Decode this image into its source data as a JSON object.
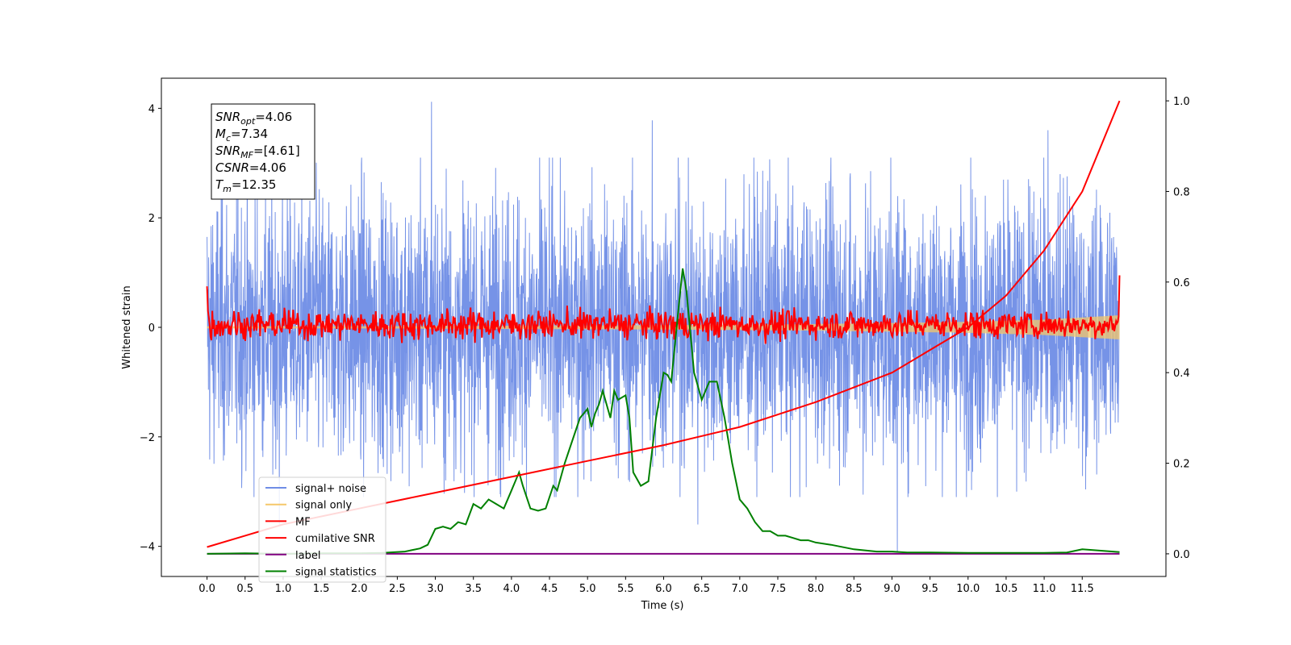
{
  "chart_data": {
    "type": "line",
    "xlabel": "Time (s)",
    "ylabel": "Whitened strain",
    "xlim": [
      -0.6,
      12.6
    ],
    "ylim_left": [
      -4.55,
      4.55
    ],
    "ylim_right": [
      -0.05,
      1.05
    ],
    "x_ticks": [
      "0.0",
      "0.5",
      "1.0",
      "1.5",
      "2.0",
      "2.5",
      "3.0",
      "3.5",
      "4.0",
      "4.5",
      "5.0",
      "5.5",
      "6.0",
      "6.5",
      "7.0",
      "7.5",
      "8.0",
      "8.5",
      "9.0",
      "9.5",
      "10.0",
      "10.5",
      "11.0",
      "11.5"
    ],
    "y_ticks_left": [
      "4",
      "2",
      "0",
      "−2",
      "−4"
    ],
    "y_ticks_right": [
      "1.0",
      "0.8",
      "0.6",
      "0.4",
      "0.2",
      "0.0"
    ],
    "annotation": {
      "lines": [
        {
          "base": "SNR",
          "sub": "opt",
          "value": "=4.06"
        },
        {
          "base": "M",
          "sub": "c",
          "value": "=7.34"
        },
        {
          "base": "SNR",
          "sub": "MF",
          "value": "=[4.61]"
        },
        {
          "base": "CSNR",
          "sub": "",
          "value": "=4.06"
        },
        {
          "base": "T",
          "sub": "m",
          "value": "=12.35"
        }
      ]
    },
    "legend": {
      "position": "lower-left",
      "entries": [
        {
          "label": "signal+ noise",
          "color": "#6f8de6"
        },
        {
          "label": "signal only",
          "color": "#f5c76a"
        },
        {
          "label": "MF",
          "color": "#ff0000"
        },
        {
          "label": "cumilative SNR",
          "color": "#ff0000"
        },
        {
          "label": "label",
          "color": "#800080"
        },
        {
          "label": "signal statistics",
          "color": "#008000"
        }
      ]
    },
    "series": [
      {
        "name": "signal+ noise",
        "axis": "left",
        "color": "#6f8de6",
        "style": "dense noise band",
        "x_range": [
          0.0,
          11.99
        ],
        "typical_envelope": [
          -2.0,
          2.0
        ],
        "notable_peaks": [
          [
            2.95,
            4.12
          ],
          [
            5.85,
            3.78
          ],
          [
            11.05,
            3.6
          ],
          [
            9.07,
            -4.1
          ],
          [
            6.45,
            -3.6
          ],
          [
            0.95,
            -3.6
          ]
        ]
      },
      {
        "name": "signal only",
        "axis": "left",
        "color": "#f5c76a",
        "x": [
          0.0,
          2.0,
          4.0,
          6.0,
          8.0,
          10.0,
          11.0,
          11.5,
          11.99
        ],
        "amplitude": [
          0.02,
          0.02,
          0.03,
          0.04,
          0.06,
          0.1,
          0.14,
          0.18,
          0.22
        ]
      },
      {
        "name": "MF",
        "axis": "left",
        "color": "#ff0000",
        "style": "noisy line around zero",
        "x_range": [
          0.0,
          11.99
        ],
        "typical_envelope": [
          -0.3,
          0.6
        ],
        "start_value": 0.75,
        "end_value": 0.95
      },
      {
        "name": "cumilative SNR",
        "axis": "right",
        "color": "#ff0000",
        "x": [
          0.0,
          0.5,
          1.0,
          2.0,
          3.0,
          4.0,
          5.0,
          6.0,
          7.0,
          8.0,
          9.0,
          10.0,
          10.5,
          11.0,
          11.5,
          11.99
        ],
        "y": [
          0.015,
          0.04,
          0.065,
          0.1,
          0.135,
          0.17,
          0.205,
          0.24,
          0.28,
          0.335,
          0.4,
          0.5,
          0.57,
          0.67,
          0.8,
          1.0
        ]
      },
      {
        "name": "label",
        "axis": "right",
        "color": "#800080",
        "x": [
          0.0,
          11.99
        ],
        "y": [
          0.0,
          0.0
        ]
      },
      {
        "name": "signal statistics",
        "axis": "right",
        "color": "#008000",
        "x": [
          0.0,
          0.5,
          1.0,
          1.5,
          2.0,
          2.3,
          2.6,
          2.8,
          2.9,
          3.0,
          3.1,
          3.2,
          3.3,
          3.4,
          3.5,
          3.6,
          3.7,
          3.8,
          3.9,
          4.0,
          4.1,
          4.15,
          4.25,
          4.35,
          4.45,
          4.55,
          4.6,
          4.7,
          4.8,
          4.9,
          5.0,
          5.05,
          5.1,
          5.15,
          5.2,
          5.3,
          5.35,
          5.4,
          5.5,
          5.55,
          5.6,
          5.7,
          5.8,
          5.9,
          6.0,
          6.05,
          6.1,
          6.2,
          6.25,
          6.3,
          6.4,
          6.5,
          6.6,
          6.7,
          6.8,
          6.9,
          7.0,
          7.1,
          7.2,
          7.3,
          7.4,
          7.5,
          7.6,
          7.7,
          7.8,
          7.9,
          8.0,
          8.2,
          8.5,
          8.8,
          9.0,
          9.2,
          9.5,
          10.0,
          10.5,
          11.0,
          11.3,
          11.5,
          11.99
        ],
        "y": [
          0.0,
          0.001,
          0.0,
          0.001,
          0.001,
          0.002,
          0.005,
          0.012,
          0.02,
          0.055,
          0.06,
          0.055,
          0.07,
          0.065,
          0.11,
          0.1,
          0.12,
          0.11,
          0.1,
          0.14,
          0.18,
          0.15,
          0.1,
          0.095,
          0.1,
          0.15,
          0.14,
          0.2,
          0.25,
          0.3,
          0.32,
          0.28,
          0.31,
          0.33,
          0.36,
          0.3,
          0.36,
          0.34,
          0.35,
          0.3,
          0.18,
          0.15,
          0.16,
          0.3,
          0.4,
          0.395,
          0.38,
          0.55,
          0.63,
          0.58,
          0.4,
          0.34,
          0.38,
          0.38,
          0.3,
          0.2,
          0.12,
          0.1,
          0.07,
          0.05,
          0.05,
          0.04,
          0.04,
          0.035,
          0.03,
          0.03,
          0.025,
          0.02,
          0.01,
          0.005,
          0.005,
          0.003,
          0.003,
          0.002,
          0.002,
          0.002,
          0.003,
          0.01,
          0.004
        ]
      }
    ]
  }
}
